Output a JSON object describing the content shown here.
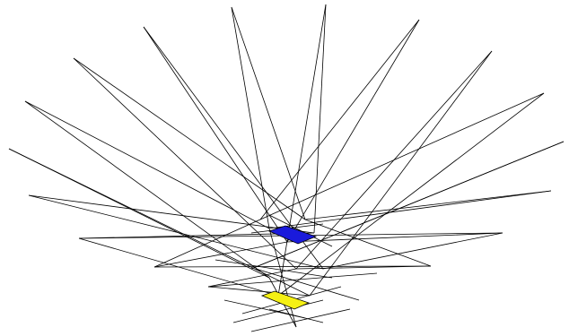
{
  "scene": {
    "line_color": "#000000",
    "background": "#ffffff",
    "blue_fill": "#1a1adb",
    "yellow_fill": "#f5f014"
  }
}
